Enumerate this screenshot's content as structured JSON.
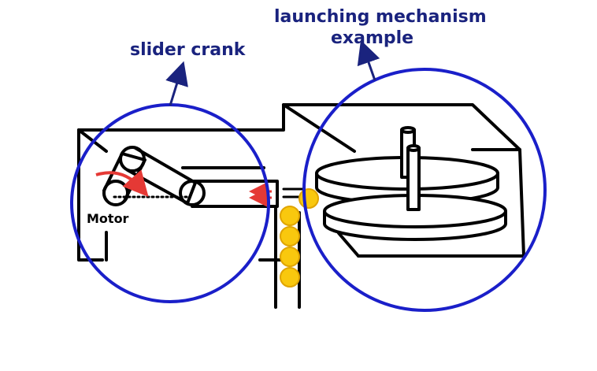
{
  "labels": {
    "slider_crank": "slider crank",
    "launching_line1": "launching mechanism",
    "launching_line2": "example",
    "motor": "Motor"
  },
  "colors": {
    "circle": "#1a1fc9",
    "ink": "#000000",
    "label_ink": "#1a237e",
    "arrow_red": "#e53935",
    "ball_fill": "#f9c80e",
    "ball_stroke": "#e0a400"
  },
  "icons": {
    "motor": "motor-icon",
    "ball": "ball-icon",
    "rotation_arrow": "curved-arrow-icon"
  }
}
